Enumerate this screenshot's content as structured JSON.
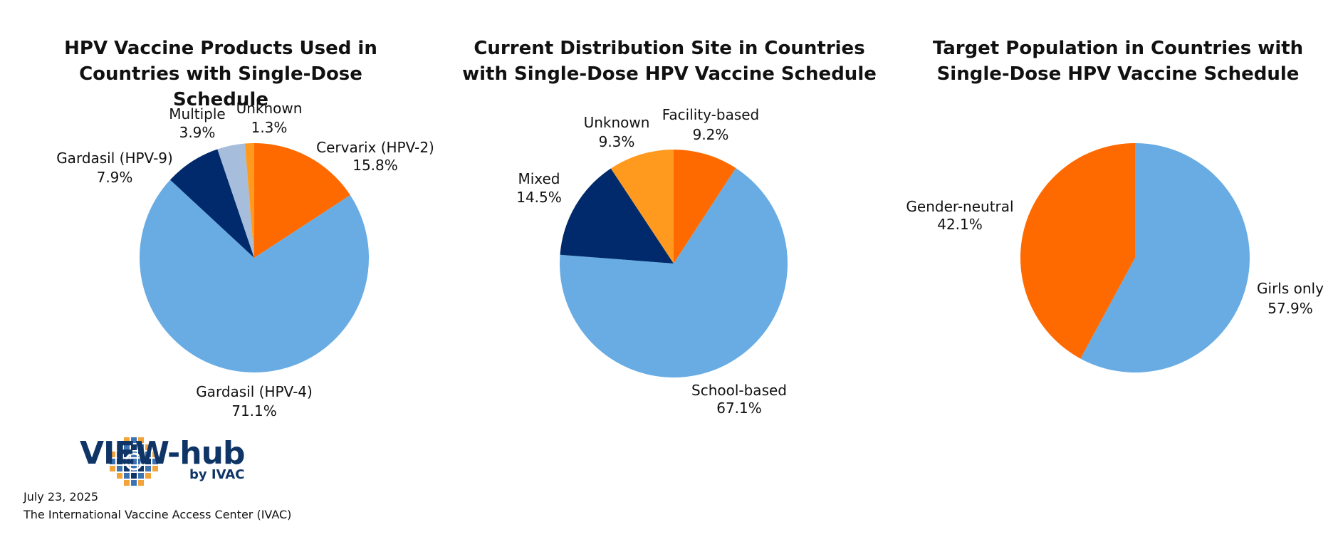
{
  "chart_data": [
    {
      "type": "pie",
      "title": "HPV Vaccine Products Used in\nCountries with Single-Dose Schedule",
      "slices": [
        {
          "label": "Cervarix (HPV-2)",
          "value_text": "15.8%",
          "value": 15.8,
          "color": "#ff6a00"
        },
        {
          "label": "Gardasil (HPV-4)",
          "value_text": "71.1%",
          "value": 71.1,
          "color": "#68ace3"
        },
        {
          "label": "Gardasil (HPV-9)",
          "value_text": "7.9%",
          "value": 7.9,
          "color": "#002a6b"
        },
        {
          "label": "Multiple",
          "value_text": "3.9%",
          "value": 3.9,
          "color": "#a6bedc"
        },
        {
          "label": "Unknown",
          "value_text": "1.3%",
          "value": 1.3,
          "color": "#ff9a1f"
        }
      ]
    },
    {
      "type": "pie",
      "title": "Current Distribution Site in Countries\nwith Single-Dose HPV Vaccine Schedule",
      "slices": [
        {
          "label": "Facility-based",
          "value_text": "9.2%",
          "value": 9.2,
          "color": "#ff6a00"
        },
        {
          "label": "School-based",
          "value_text": "67.1%",
          "value": 67.1,
          "color": "#68ace3"
        },
        {
          "label": "Mixed",
          "value_text": "14.5%",
          "value": 14.5,
          "color": "#002a6b"
        },
        {
          "label": "Unknown",
          "value_text": "9.3%",
          "value": 9.3,
          "color": "#ff9a1f"
        }
      ]
    },
    {
      "type": "pie",
      "title": "Target Population in Countries with\nSingle-Dose HPV Vaccine Schedule",
      "slices": [
        {
          "label": "Girls only",
          "value_text": "57.9%",
          "value": 57.9,
          "color": "#68ace3"
        },
        {
          "label": "Gender-neutral",
          "value_text": "42.1%",
          "value": 42.1,
          "color": "#ff6a00"
        }
      ]
    }
  ],
  "logo": {
    "word": "VIEW-hub",
    "sub": "by IVAC",
    "primary_color": "#0f3466",
    "accent_color": "#f2a33a",
    "secondary_color": "#3b73b3"
  },
  "footer": {
    "date": "July 23, 2025",
    "source": "The International Vaccine Access Center (IVAC)"
  }
}
